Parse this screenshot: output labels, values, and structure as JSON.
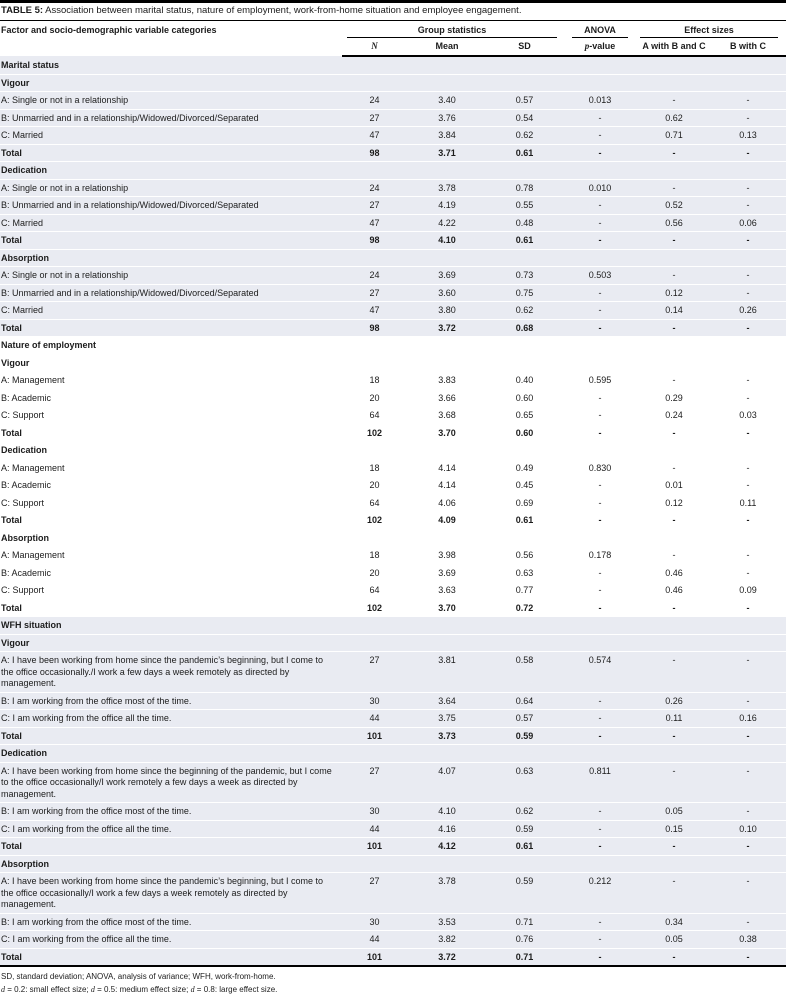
{
  "title": {
    "prefix": "TABLE 5:",
    "rest": " Association between marital status, nature of employment, work-from-home situation and employee engagement."
  },
  "header": {
    "factor_label": "Factor and socio-demographic variable categories",
    "group_statistics": "Group statistics",
    "anova": "ANOVA",
    "effect_sizes": "Effect sizes",
    "n": "N",
    "mean": "Mean",
    "sd": "SD",
    "p_italic": "p",
    "p_rest": "-value",
    "a_with_b_and_c": "A with B and C",
    "b_with_c": "B with C"
  },
  "sections": [
    {
      "name": "Marital status",
      "shaded": true,
      "subsections": [
        {
          "name": "Vigour",
          "rows": [
            {
              "label": "A: Single or not in a relationship",
              "n": "24",
              "mean": "3.40",
              "sd": "0.57",
              "p": "0.013",
              "awbc": "-",
              "bwc": "-",
              "bold": false
            },
            {
              "label": "B: Unmarried and in a relationship/Widowed/Divorced/Separated",
              "n": "27",
              "mean": "3.76",
              "sd": "0.54",
              "p": "-",
              "awbc": "0.62",
              "bwc": "-",
              "bold": false
            },
            {
              "label": "C: Married",
              "n": "47",
              "mean": "3.84",
              "sd": "0.62",
              "p": "-",
              "awbc": "0.71",
              "bwc": "0.13",
              "bold": false
            },
            {
              "label": "Total",
              "n": "98",
              "mean": "3.71",
              "sd": "0.61",
              "p": "-",
              "awbc": "-",
              "bwc": "-",
              "bold": true
            }
          ]
        },
        {
          "name": "Dedication",
          "rows": [
            {
              "label": "A: Single or not in a relationship",
              "n": "24",
              "mean": "3.78",
              "sd": "0.78",
              "p": "0.010",
              "awbc": "-",
              "bwc": "-",
              "bold": false
            },
            {
              "label": "B: Unmarried and in a relationship/Widowed/Divorced/Separated",
              "n": "27",
              "mean": "4.19",
              "sd": "0.55",
              "p": "-",
              "awbc": "0.52",
              "bwc": "-",
              "bold": false
            },
            {
              "label": "C: Married",
              "n": "47",
              "mean": "4.22",
              "sd": "0.48",
              "p": "-",
              "awbc": "0.56",
              "bwc": "0.06",
              "bold": false
            },
            {
              "label": "Total",
              "n": "98",
              "mean": "4.10",
              "sd": "0.61",
              "p": "-",
              "awbc": "-",
              "bwc": "-",
              "bold": true
            }
          ]
        },
        {
          "name": "Absorption",
          "rows": [
            {
              "label": "A: Single or not in a relationship",
              "n": "24",
              "mean": "3.69",
              "sd": "0.73",
              "p": "0.503",
              "awbc": "-",
              "bwc": "-",
              "bold": false
            },
            {
              "label": "B: Unmarried and in a relationship/Widowed/Divorced/Separated",
              "n": "27",
              "mean": "3.60",
              "sd": "0.75",
              "p": "-",
              "awbc": "0.12",
              "bwc": "-",
              "bold": false
            },
            {
              "label": "C: Married",
              "n": "47",
              "mean": "3.80",
              "sd": "0.62",
              "p": "-",
              "awbc": "0.14",
              "bwc": "0.26",
              "bold": false
            },
            {
              "label": "Total",
              "n": "98",
              "mean": "3.72",
              "sd": "0.68",
              "p": "-",
              "awbc": "-",
              "bwc": "-",
              "bold": true
            }
          ]
        }
      ]
    },
    {
      "name": "Nature of employment",
      "shaded": false,
      "subsections": [
        {
          "name": "Vigour",
          "rows": [
            {
              "label": "A: Management",
              "n": "18",
              "mean": "3.83",
              "sd": "0.40",
              "p": "0.595",
              "awbc": "-",
              "bwc": "-",
              "bold": false
            },
            {
              "label": "B: Academic",
              "n": "20",
              "mean": "3.66",
              "sd": "0.60",
              "p": "-",
              "awbc": "0.29",
              "bwc": "-",
              "bold": false
            },
            {
              "label": "C: Support",
              "n": "64",
              "mean": "3.68",
              "sd": "0.65",
              "p": "-",
              "awbc": "0.24",
              "bwc": "0.03",
              "bold": false
            },
            {
              "label": "Total",
              "n": "102",
              "mean": "3.70",
              "sd": "0.60",
              "p": "-",
              "awbc": "-",
              "bwc": "-",
              "bold": true
            }
          ]
        },
        {
          "name": "Dedication",
          "rows": [
            {
              "label": "A: Management",
              "n": "18",
              "mean": "4.14",
              "sd": "0.49",
              "p": "0.830",
              "awbc": "-",
              "bwc": "-",
              "bold": false
            },
            {
              "label": "B: Academic",
              "n": "20",
              "mean": "4.14",
              "sd": "0.45",
              "p": "-",
              "awbc": "0.01",
              "bwc": "-",
              "bold": false
            },
            {
              "label": "C: Support",
              "n": "64",
              "mean": "4.06",
              "sd": "0.69",
              "p": "-",
              "awbc": "0.12",
              "bwc": "0.11",
              "bold": false
            },
            {
              "label": "Total",
              "n": "102",
              "mean": "4.09",
              "sd": "0.61",
              "p": "-",
              "awbc": "-",
              "bwc": "-",
              "bold": true
            }
          ]
        },
        {
          "name": "Absorption",
          "rows": [
            {
              "label": "A: Management",
              "n": "18",
              "mean": "3.98",
              "sd": "0.56",
              "p": "0.178",
              "awbc": "-",
              "bwc": "-",
              "bold": false
            },
            {
              "label": "B: Academic",
              "n": "20",
              "mean": "3.69",
              "sd": "0.63",
              "p": "-",
              "awbc": "0.46",
              "bwc": "-",
              "bold": false
            },
            {
              "label": "C: Support",
              "n": "64",
              "mean": "3.63",
              "sd": "0.77",
              "p": "-",
              "awbc": "0.46",
              "bwc": "0.09",
              "bold": false
            },
            {
              "label": "Total",
              "n": "102",
              "mean": "3.70",
              "sd": "0.72",
              "p": "-",
              "awbc": "-",
              "bwc": "-",
              "bold": true
            }
          ]
        }
      ]
    },
    {
      "name": "WFH situation",
      "shaded": true,
      "subsections": [
        {
          "name": "Vigour",
          "rows": [
            {
              "label": "A: I have been working from home since the pandemic’s beginning, but I come to the office occasionally./I work a few days a week remotely as directed by management.",
              "n": "27",
              "mean": "3.81",
              "sd": "0.58",
              "p": "0.574",
              "awbc": "-",
              "bwc": "-",
              "bold": false
            },
            {
              "label": "B: I am working from the office most of the time.",
              "n": "30",
              "mean": "3.64",
              "sd": "0.64",
              "p": "-",
              "awbc": "0.26",
              "bwc": "-",
              "bold": false
            },
            {
              "label": "C: I am working from the office all the time.",
              "n": "44",
              "mean": "3.75",
              "sd": "0.57",
              "p": "-",
              "awbc": "0.11",
              "bwc": "0.16",
              "bold": false
            },
            {
              "label": "Total",
              "n": "101",
              "mean": "3.73",
              "sd": "0.59",
              "p": "-",
              "awbc": "-",
              "bwc": "-",
              "bold": true
            }
          ]
        },
        {
          "name": "Dedication",
          "rows": [
            {
              "label": "A: I have been working from home since the beginning of the pandemic, but I come to the office occasionally/I work remotely a few days a week as directed by management.",
              "n": "27",
              "mean": "4.07",
              "sd": "0.63",
              "p": "0.811",
              "awbc": "-",
              "bwc": "-",
              "bold": false
            },
            {
              "label": "B: I am working from the office most of the time.",
              "n": "30",
              "mean": "4.10",
              "sd": "0.62",
              "p": "-",
              "awbc": "0.05",
              "bwc": "-",
              "bold": false
            },
            {
              "label": "C: I am working from the office all the time.",
              "n": "44",
              "mean": "4.16",
              "sd": "0.59",
              "p": "-",
              "awbc": "0.15",
              "bwc": "0.10",
              "bold": false
            },
            {
              "label": "Total",
              "n": "101",
              "mean": "4.12",
              "sd": "0.61",
              "p": "-",
              "awbc": "-",
              "bwc": "-",
              "bold": true
            }
          ]
        },
        {
          "name": "Absorption",
          "rows": [
            {
              "label": "A: I have been working from home since the pandemic’s beginning, but I come to the office occasionally/I work a few days a week remotely as directed by management.",
              "n": "27",
              "mean": "3.78",
              "sd": "0.59",
              "p": "0.212",
              "awbc": "-",
              "bwc": "-",
              "bold": false
            },
            {
              "label": "B: I am working from the office most of the time.",
              "n": "30",
              "mean": "3.53",
              "sd": "0.71",
              "p": "-",
              "awbc": "0.34",
              "bwc": "-",
              "bold": false
            },
            {
              "label": "C: I am working from the office all the time.",
              "n": "44",
              "mean": "3.82",
              "sd": "0.76",
              "p": "-",
              "awbc": "0.05",
              "bwc": "0.38",
              "bold": false
            },
            {
              "label": "Total",
              "n": "101",
              "mean": "3.72",
              "sd": "0.71",
              "p": "-",
              "awbc": "-",
              "bwc": "-",
              "bold": true
            }
          ]
        }
      ]
    }
  ],
  "footnotes": {
    "abbreviations": "SD, standard deviation; ANOVA, analysis of variance; WFH, work-from-home.",
    "effect_size_segments": [
      {
        "text": "d",
        "italic": true
      },
      {
        "text": " = 0.2: small effect size; ",
        "italic": false
      },
      {
        "text": "d",
        "italic": true
      },
      {
        "text": " = 0.5: medium effect size; ",
        "italic": false
      },
      {
        "text": "d",
        "italic": true
      },
      {
        "text": " = 0.8: large effect size.",
        "italic": false
      }
    ]
  },
  "colors": {
    "section_shade": "#e9ebf2",
    "rule": "#000000"
  }
}
